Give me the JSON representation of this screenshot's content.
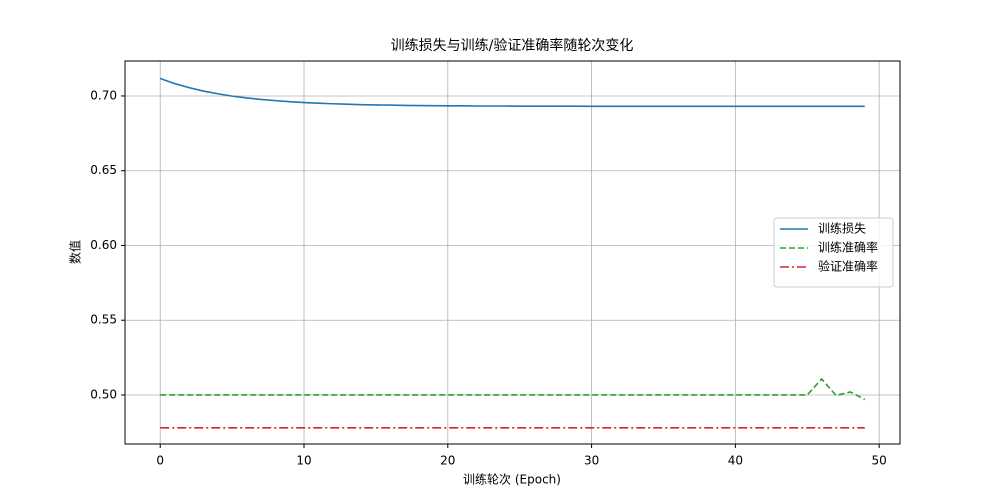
{
  "chart_data": {
    "type": "line",
    "title": "训练损失与训练/验证准确率随轮次变化",
    "xlabel": "训练轮次 (Epoch)",
    "ylabel": "数值",
    "x": [
      0,
      1,
      2,
      3,
      4,
      5,
      6,
      7,
      8,
      9,
      10,
      11,
      12,
      13,
      14,
      15,
      16,
      17,
      18,
      19,
      20,
      21,
      22,
      23,
      24,
      25,
      26,
      27,
      28,
      29,
      30,
      31,
      32,
      33,
      34,
      35,
      36,
      37,
      38,
      39,
      40,
      41,
      42,
      43,
      44,
      45,
      46,
      47,
      48,
      49
    ],
    "series": [
      {
        "name": "训练损失",
        "color": "#1f77b4",
        "dash": "solid",
        "values": [
          0.7117,
          0.7083,
          0.7056,
          0.7033,
          0.7015,
          0.6999,
          0.6987,
          0.6977,
          0.6969,
          0.6962,
          0.6956,
          0.6952,
          0.6948,
          0.6945,
          0.6942,
          0.694,
          0.6939,
          0.6937,
          0.6936,
          0.6935,
          0.6934,
          0.6934,
          0.6933,
          0.6933,
          0.6933,
          0.6932,
          0.6932,
          0.6932,
          0.6932,
          0.6932,
          0.6931,
          0.6931,
          0.6931,
          0.6931,
          0.6931,
          0.6931,
          0.6931,
          0.6931,
          0.6931,
          0.6931,
          0.6931,
          0.6931,
          0.6931,
          0.6931,
          0.6931,
          0.6931,
          0.6931,
          0.6931,
          0.6931,
          0.6931
        ]
      },
      {
        "name": "训练准确率",
        "color": "#2ca02c",
        "dash": "dashed",
        "values": [
          0.5,
          0.5,
          0.5,
          0.5,
          0.5,
          0.5,
          0.5,
          0.5,
          0.5,
          0.5,
          0.5,
          0.5,
          0.5,
          0.5,
          0.5,
          0.5,
          0.5,
          0.5,
          0.5,
          0.5,
          0.5,
          0.5,
          0.5,
          0.5,
          0.5,
          0.5,
          0.5,
          0.5,
          0.5,
          0.5,
          0.5,
          0.5,
          0.5,
          0.5,
          0.5,
          0.5,
          0.5,
          0.5,
          0.5,
          0.5,
          0.5,
          0.5,
          0.5,
          0.5,
          0.5,
          0.5,
          0.5107,
          0.4997,
          0.502,
          0.497
        ]
      },
      {
        "name": "验证准确率",
        "color": "#d62728",
        "dash": "dashdot",
        "values": [
          0.478,
          0.478,
          0.478,
          0.478,
          0.478,
          0.478,
          0.478,
          0.478,
          0.478,
          0.478,
          0.478,
          0.478,
          0.478,
          0.478,
          0.478,
          0.478,
          0.478,
          0.478,
          0.478,
          0.478,
          0.478,
          0.478,
          0.478,
          0.478,
          0.478,
          0.478,
          0.478,
          0.478,
          0.478,
          0.478,
          0.478,
          0.478,
          0.478,
          0.478,
          0.478,
          0.478,
          0.478,
          0.478,
          0.478,
          0.478,
          0.478,
          0.478,
          0.478,
          0.478,
          0.478,
          0.478,
          0.478,
          0.478,
          0.478,
          0.478
        ]
      }
    ],
    "xlim": [
      -2.45,
      51.45
    ],
    "xticks": [
      0,
      10,
      20,
      30,
      40,
      50
    ],
    "ylim": [
      0.4672,
      0.7234
    ],
    "yticks": [
      {
        "value": 0.5,
        "label": "0.50"
      },
      {
        "value": 0.55,
        "label": "0.55"
      },
      {
        "value": 0.6,
        "label": "0.60"
      },
      {
        "value": 0.65,
        "label": "0.65"
      },
      {
        "value": 0.7,
        "label": "0.70"
      }
    ],
    "grid": true,
    "legend": "center right"
  }
}
